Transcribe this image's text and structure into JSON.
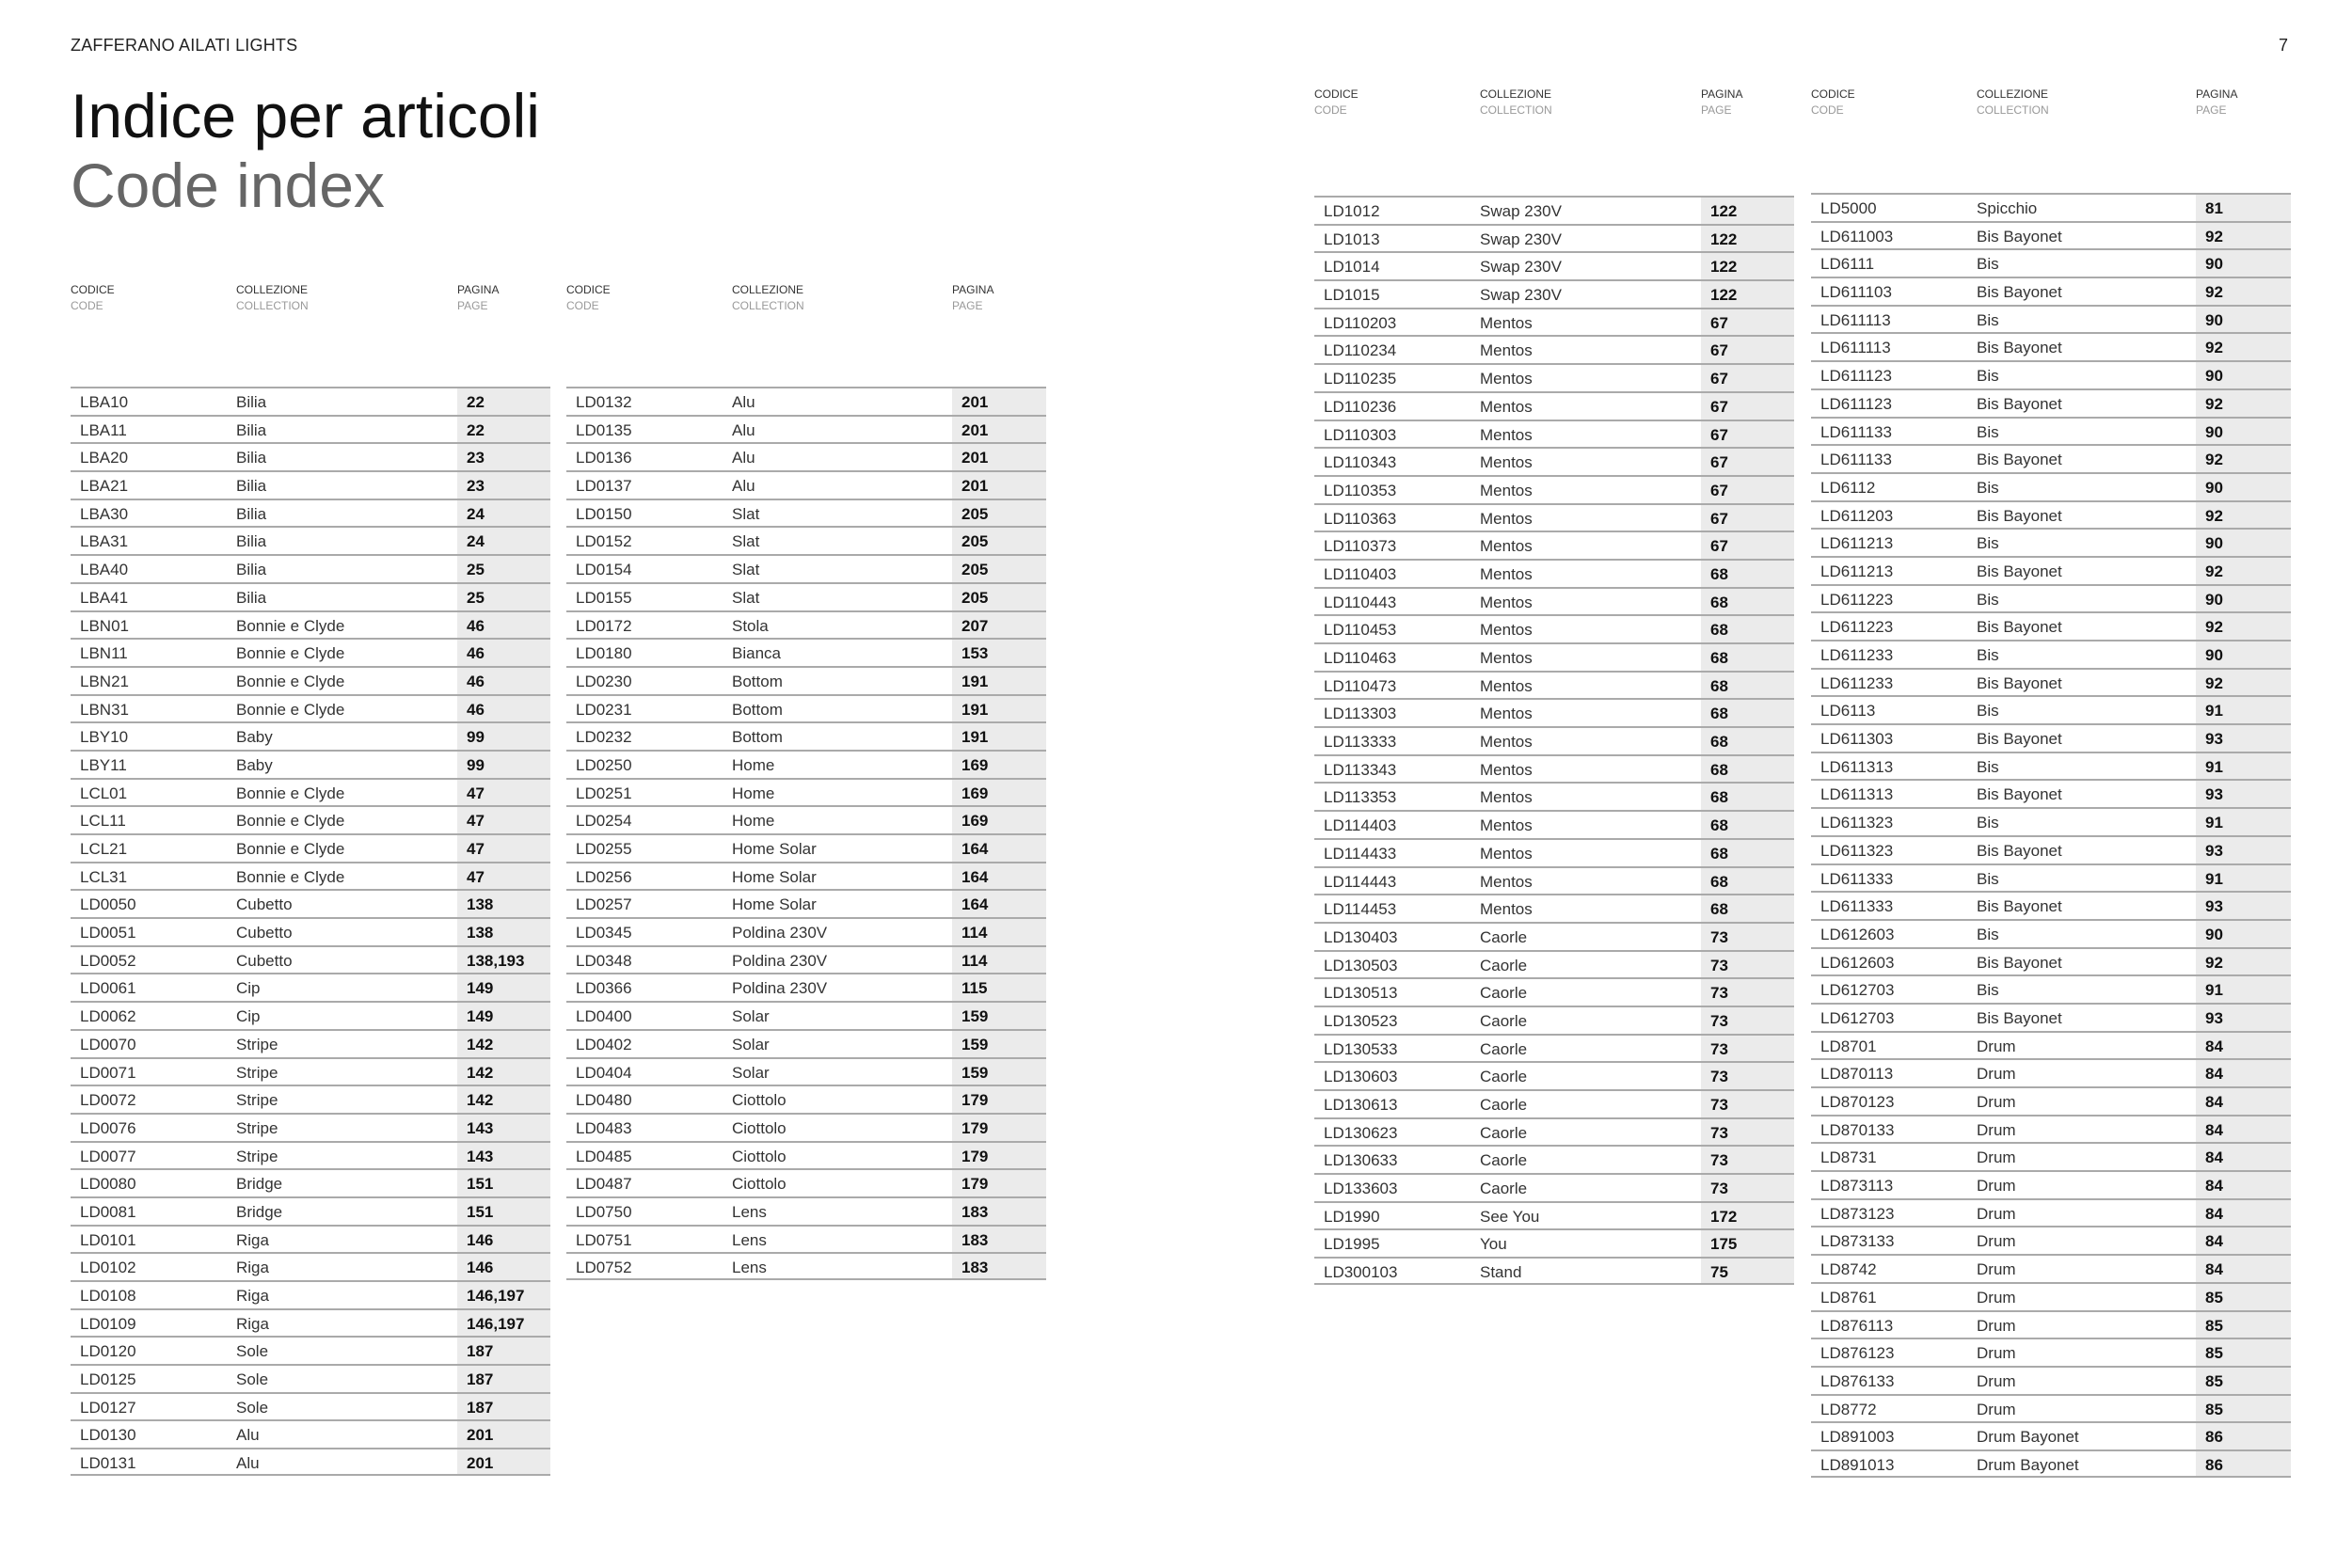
{
  "left_page": {
    "running_head": "ZAFFERANO AILATI LIGHTS",
    "title_it": "Indice per articoli",
    "title_en": "Code index"
  },
  "right_page": {
    "page_number": "7"
  },
  "headers": {
    "code_it": "CODICE",
    "code_en": "CODE",
    "collection_it": "COLLEZIONE",
    "collection_en": "COLLECTION",
    "page_it": "PAGINA",
    "page_en": "PAGE"
  },
  "colors": {
    "page_cell_bg": "#ebebeb",
    "rule": "#aaaaaa",
    "subtitle": "#666666"
  },
  "columns": [
    {
      "rows": [
        [
          "LBA10",
          "Bilia",
          "22"
        ],
        [
          "LBA11",
          "Bilia",
          "22"
        ],
        [
          "LBA20",
          "Bilia",
          "23"
        ],
        [
          "LBA21",
          "Bilia",
          "23"
        ],
        [
          "LBA30",
          "Bilia",
          "24"
        ],
        [
          "LBA31",
          "Bilia",
          "24"
        ],
        [
          "LBA40",
          "Bilia",
          "25"
        ],
        [
          "LBA41",
          "Bilia",
          "25"
        ],
        [
          "LBN01",
          "Bonnie e Clyde",
          "46"
        ],
        [
          "LBN11",
          "Bonnie e Clyde",
          "46"
        ],
        [
          "LBN21",
          "Bonnie e Clyde",
          "46"
        ],
        [
          "LBN31",
          "Bonnie e Clyde",
          "46"
        ],
        [
          "LBY10",
          "Baby",
          "99"
        ],
        [
          "LBY11",
          "Baby",
          "99"
        ],
        [
          "LCL01",
          "Bonnie e Clyde",
          "47"
        ],
        [
          "LCL11",
          "Bonnie e Clyde",
          "47"
        ],
        [
          "LCL21",
          "Bonnie e Clyde",
          "47"
        ],
        [
          "LCL31",
          "Bonnie e Clyde",
          "47"
        ],
        [
          "LD0050",
          "Cubetto",
          "138"
        ],
        [
          "LD0051",
          "Cubetto",
          "138"
        ],
        [
          "LD0052",
          "Cubetto",
          "138,193"
        ],
        [
          "LD0061",
          "Cip",
          "149"
        ],
        [
          "LD0062",
          "Cip",
          "149"
        ],
        [
          "LD0070",
          "Stripe",
          "142"
        ],
        [
          "LD0071",
          "Stripe",
          "142"
        ],
        [
          "LD0072",
          "Stripe",
          "142"
        ],
        [
          "LD0076",
          "Stripe",
          "143"
        ],
        [
          "LD0077",
          "Stripe",
          "143"
        ],
        [
          "LD0080",
          "Bridge",
          "151"
        ],
        [
          "LD0081",
          "Bridge",
          "151"
        ],
        [
          "LD0101",
          "Riga",
          "146"
        ],
        [
          "LD0102",
          "Riga",
          "146"
        ],
        [
          "LD0108",
          "Riga",
          "146,197"
        ],
        [
          "LD0109",
          "Riga",
          "146,197"
        ],
        [
          "LD0120",
          "Sole",
          "187"
        ],
        [
          "LD0125",
          "Sole",
          "187"
        ],
        [
          "LD0127",
          "Sole",
          "187"
        ],
        [
          "LD0130",
          "Alu",
          "201"
        ],
        [
          "LD0131",
          "Alu",
          "201"
        ]
      ]
    },
    {
      "rows": [
        [
          "LD0132",
          "Alu",
          "201"
        ],
        [
          "LD0135",
          "Alu",
          "201"
        ],
        [
          "LD0136",
          "Alu",
          "201"
        ],
        [
          "LD0137",
          "Alu",
          "201"
        ],
        [
          "LD0150",
          "Slat",
          "205"
        ],
        [
          "LD0152",
          "Slat",
          "205"
        ],
        [
          "LD0154",
          "Slat",
          "205"
        ],
        [
          "LD0155",
          "Slat",
          "205"
        ],
        [
          "LD0172",
          "Stola",
          "207"
        ],
        [
          "LD0180",
          "Bianca",
          "153"
        ],
        [
          "LD0230",
          "Bottom",
          "191"
        ],
        [
          "LD0231",
          "Bottom",
          "191"
        ],
        [
          "LD0232",
          "Bottom",
          "191"
        ],
        [
          "LD0250",
          "Home",
          "169"
        ],
        [
          "LD0251",
          "Home",
          "169"
        ],
        [
          "LD0254",
          "Home",
          "169"
        ],
        [
          "LD0255",
          "Home Solar",
          "164"
        ],
        [
          "LD0256",
          "Home Solar",
          "164"
        ],
        [
          "LD0257",
          "Home Solar",
          "164"
        ],
        [
          "LD0345",
          "Poldina 230V",
          "114"
        ],
        [
          "LD0348",
          "Poldina 230V",
          "114"
        ],
        [
          "LD0366",
          "Poldina 230V",
          "115"
        ],
        [
          "LD0400",
          "Solar",
          "159"
        ],
        [
          "LD0402",
          "Solar",
          "159"
        ],
        [
          "LD0404",
          "Solar",
          "159"
        ],
        [
          "LD0480",
          "Ciottolo",
          "179"
        ],
        [
          "LD0483",
          "Ciottolo",
          "179"
        ],
        [
          "LD0485",
          "Ciottolo",
          "179"
        ],
        [
          "LD0487",
          "Ciottolo",
          "179"
        ],
        [
          "LD0750",
          "Lens",
          "183"
        ],
        [
          "LD0751",
          "Lens",
          "183"
        ],
        [
          "LD0752",
          "Lens",
          "183"
        ]
      ]
    },
    {
      "rows": [
        [
          "LD1012",
          "Swap 230V",
          "122"
        ],
        [
          "LD1013",
          "Swap 230V",
          "122"
        ],
        [
          "LD1014",
          "Swap 230V",
          "122"
        ],
        [
          "LD1015",
          "Swap 230V",
          "122"
        ],
        [
          "LD110203",
          "Mentos",
          "67"
        ],
        [
          "LD110234",
          "Mentos",
          "67"
        ],
        [
          "LD110235",
          "Mentos",
          "67"
        ],
        [
          "LD110236",
          "Mentos",
          "67"
        ],
        [
          "LD110303",
          "Mentos",
          "67"
        ],
        [
          "LD110343",
          "Mentos",
          "67"
        ],
        [
          "LD110353",
          "Mentos",
          "67"
        ],
        [
          "LD110363",
          "Mentos",
          "67"
        ],
        [
          "LD110373",
          "Mentos",
          "67"
        ],
        [
          "LD110403",
          "Mentos",
          "68"
        ],
        [
          "LD110443",
          "Mentos",
          "68"
        ],
        [
          "LD110453",
          "Mentos",
          "68"
        ],
        [
          "LD110463",
          "Mentos",
          "68"
        ],
        [
          "LD110473",
          "Mentos",
          "68"
        ],
        [
          "LD113303",
          "Mentos",
          "68"
        ],
        [
          "LD113333",
          "Mentos",
          "68"
        ],
        [
          "LD113343",
          "Mentos",
          "68"
        ],
        [
          "LD113353",
          "Mentos",
          "68"
        ],
        [
          "LD114403",
          "Mentos",
          "68"
        ],
        [
          "LD114433",
          "Mentos",
          "68"
        ],
        [
          "LD114443",
          "Mentos",
          "68"
        ],
        [
          "LD114453",
          "Mentos",
          "68"
        ],
        [
          "LD130403",
          "Caorle",
          "73"
        ],
        [
          "LD130503",
          "Caorle",
          "73"
        ],
        [
          "LD130513",
          "Caorle",
          "73"
        ],
        [
          "LD130523",
          "Caorle",
          "73"
        ],
        [
          "LD130533",
          "Caorle",
          "73"
        ],
        [
          "LD130603",
          "Caorle",
          "73"
        ],
        [
          "LD130613",
          "Caorle",
          "73"
        ],
        [
          "LD130623",
          "Caorle",
          "73"
        ],
        [
          "LD130633",
          "Caorle",
          "73"
        ],
        [
          "LD133603",
          "Caorle",
          "73"
        ],
        [
          "LD1990",
          "See You",
          "172"
        ],
        [
          "LD1995",
          "You",
          "175"
        ],
        [
          "LD300103",
          "Stand",
          "75"
        ]
      ]
    },
    {
      "rows": [
        [
          "LD5000",
          "Spicchio",
          "81"
        ],
        [
          "LD611003",
          "Bis Bayonet",
          "92"
        ],
        [
          "LD6111",
          "Bis",
          "90"
        ],
        [
          "LD611103",
          "Bis Bayonet",
          "92"
        ],
        [
          "LD611113",
          "Bis",
          "90"
        ],
        [
          "LD611113",
          "Bis Bayonet",
          "92"
        ],
        [
          "LD611123",
          "Bis",
          "90"
        ],
        [
          "LD611123",
          "Bis Bayonet",
          "92"
        ],
        [
          "LD611133",
          "Bis",
          "90"
        ],
        [
          "LD611133",
          "Bis Bayonet",
          "92"
        ],
        [
          "LD6112",
          "Bis",
          "90"
        ],
        [
          "LD611203",
          "Bis Bayonet",
          "92"
        ],
        [
          "LD611213",
          "Bis",
          "90"
        ],
        [
          "LD611213",
          "Bis Bayonet",
          "92"
        ],
        [
          "LD611223",
          "Bis",
          "90"
        ],
        [
          "LD611223",
          "Bis Bayonet",
          "92"
        ],
        [
          "LD611233",
          "Bis",
          "90"
        ],
        [
          "LD611233",
          "Bis Bayonet",
          "92"
        ],
        [
          "LD6113",
          "Bis",
          "91"
        ],
        [
          "LD611303",
          "Bis Bayonet",
          "93"
        ],
        [
          "LD611313",
          "Bis",
          "91"
        ],
        [
          "LD611313",
          "Bis Bayonet",
          "93"
        ],
        [
          "LD611323",
          "Bis",
          "91"
        ],
        [
          "LD611323",
          "Bis Bayonet",
          "93"
        ],
        [
          "LD611333",
          "Bis",
          "91"
        ],
        [
          "LD611333",
          "Bis Bayonet",
          "93"
        ],
        [
          "LD612603",
          "Bis",
          "90"
        ],
        [
          "LD612603",
          "Bis Bayonet",
          "92"
        ],
        [
          "LD612703",
          "Bis",
          "91"
        ],
        [
          "LD612703",
          "Bis Bayonet",
          "93"
        ],
        [
          "LD8701",
          "Drum",
          "84"
        ],
        [
          "LD870113",
          "Drum",
          "84"
        ],
        [
          "LD870123",
          "Drum",
          "84"
        ],
        [
          "LD870133",
          "Drum",
          "84"
        ],
        [
          "LD8731",
          "Drum",
          "84"
        ],
        [
          "LD873113",
          "Drum",
          "84"
        ],
        [
          "LD873123",
          "Drum",
          "84"
        ],
        [
          "LD873133",
          "Drum",
          "84"
        ],
        [
          "LD8742",
          "Drum",
          "84"
        ],
        [
          "LD8761",
          "Drum",
          "85"
        ],
        [
          "LD876113",
          "Drum",
          "85"
        ],
        [
          "LD876123",
          "Drum",
          "85"
        ],
        [
          "LD876133",
          "Drum",
          "85"
        ],
        [
          "LD8772",
          "Drum",
          "85"
        ],
        [
          "LD891003",
          "Drum Bayonet",
          "86"
        ],
        [
          "LD891013",
          "Drum Bayonet",
          "86"
        ]
      ]
    }
  ]
}
